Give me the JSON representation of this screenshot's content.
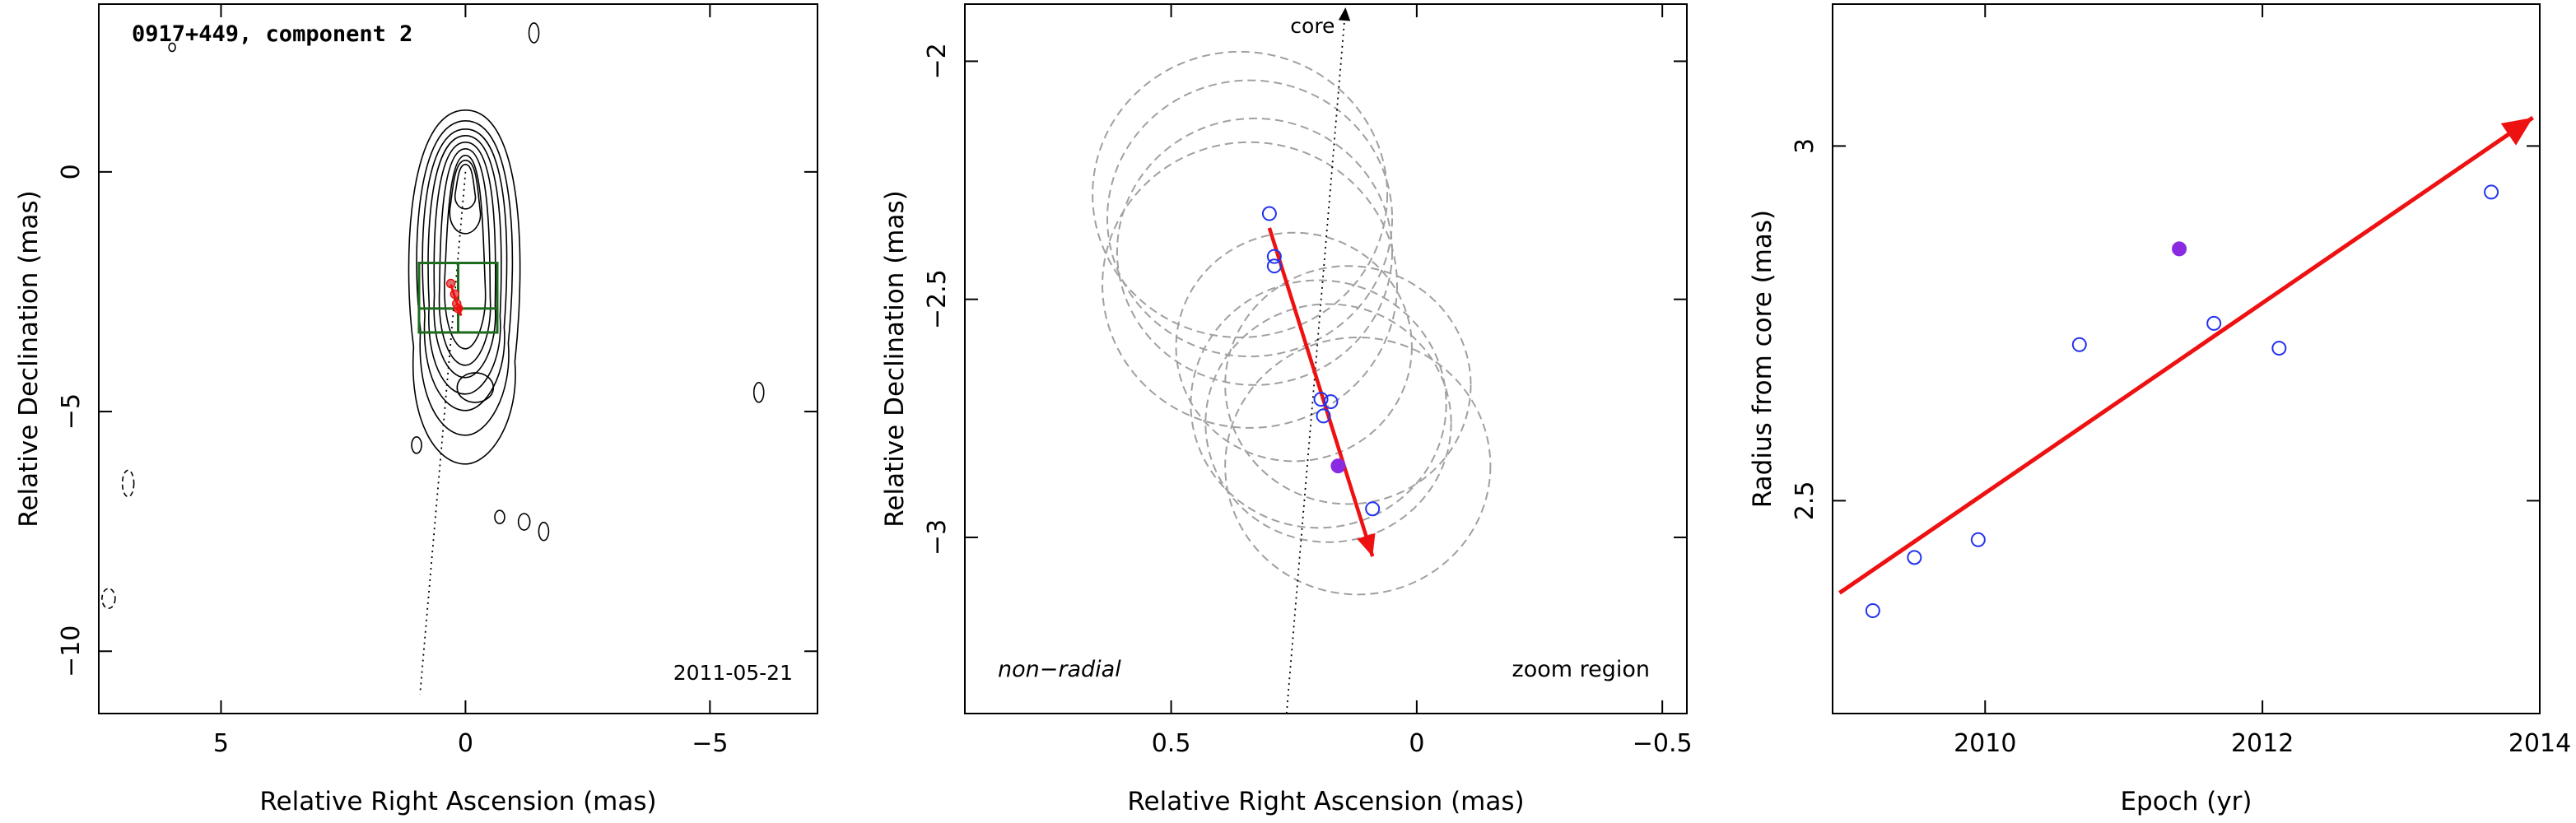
{
  "colors": {
    "axis": "#000000",
    "contour": "#000000",
    "box": "#1e6b1e",
    "arrow": "#ee1111",
    "open_point": "#2233ee",
    "filled_point": "#8a2be2",
    "circle": "#a0a0a0"
  },
  "chart_data": [
    {
      "type": "contour",
      "title": "0917+449, component 2",
      "date": "2011-05-21",
      "xlabel": "Relative Right Ascension (mas)",
      "ylabel": "Relative Declination (mas)",
      "xlim": [
        7.5,
        -7.2
      ],
      "ylim": [
        -11.3,
        3.5
      ],
      "xticks": [
        5,
        0,
        -5
      ],
      "yticks": [
        0,
        -5,
        -10
      ],
      "xtick_labels": [
        "5",
        "0",
        "−5"
      ],
      "ytick_labels": [
        "0",
        "−5",
        "−10"
      ],
      "core_direction_line": [
        [
          0.0,
          0.0
        ],
        [
          0.93,
          -10.9
        ]
      ],
      "zoom_boxes": [
        {
          "x": [
            -0.65,
            0.95
          ],
          "y": [
            -3.35,
            -1.9
          ]
        },
        {
          "x": [
            -0.65,
            0.95
          ],
          "y": [
            -3.35,
            -2.85
          ]
        }
      ],
      "component_points": [
        [
          0.3,
          -2.33
        ],
        [
          0.22,
          -2.55
        ],
        [
          0.18,
          -2.75
        ],
        [
          0.15,
          -2.85
        ]
      ],
      "component_arrow": [
        [
          0.3,
          -2.35
        ],
        [
          0.09,
          -3.0
        ]
      ]
    },
    {
      "type": "scatter",
      "xlabel": "Relative Right Ascension (mas)",
      "ylabel": "Relative Declination (mas)",
      "xlim": [
        0.92,
        -0.55
      ],
      "ylim": [
        -3.37,
        -1.88
      ],
      "xticks": [
        0.5,
        0,
        -0.5
      ],
      "yticks": [
        -2,
        -2.5,
        -3
      ],
      "xtick_labels": [
        "0.5",
        "0",
        "−0.5"
      ],
      "ytick_labels": [
        "−2",
        "−2.5",
        "−3"
      ],
      "annotations": [
        "core",
        "non−radial",
        "zoom region"
      ],
      "core_line": [
        [
          0.265,
          -3.37
        ],
        [
          0.145,
          -1.88
        ]
      ],
      "arrow": [
        [
          0.3,
          -2.35
        ],
        [
          0.09,
          -3.04
        ]
      ],
      "open_points": [
        [
          0.3,
          -2.32
        ],
        [
          0.29,
          -2.41
        ],
        [
          0.29,
          -2.43
        ],
        [
          0.195,
          -2.71
        ],
        [
          0.175,
          -2.715
        ],
        [
          0.19,
          -2.745
        ],
        [
          0.09,
          -2.94
        ]
      ],
      "filled_points": [
        [
          0.16,
          -2.85
        ]
      ],
      "error_circles": [
        {
          "cx": 0.36,
          "cy": -2.28,
          "r": 0.3
        },
        {
          "cx": 0.34,
          "cy": -2.33,
          "r": 0.29
        },
        {
          "cx": 0.33,
          "cy": -2.4,
          "r": 0.28
        },
        {
          "cx": 0.34,
          "cy": -2.47,
          "r": 0.3
        },
        {
          "cx": 0.25,
          "cy": -2.6,
          "r": 0.24
        },
        {
          "cx": 0.2,
          "cy": -2.72,
          "r": 0.26
        },
        {
          "cx": 0.18,
          "cy": -2.76,
          "r": 0.25
        },
        {
          "cx": 0.12,
          "cy": -2.85,
          "r": 0.27
        },
        {
          "cx": 0.14,
          "cy": -2.68,
          "r": 0.25
        }
      ]
    },
    {
      "type": "scatter",
      "xlabel": "Epoch (yr)",
      "ylabel": "Radius from core (mas)",
      "xlim": [
        2008.9,
        2014.0
      ],
      "ylim": [
        2.2,
        3.2
      ],
      "xticks": [
        2010,
        2012,
        2014
      ],
      "yticks": [
        2.5,
        3.0
      ],
      "xtick_labels": [
        "2010",
        "2012",
        "2014"
      ],
      "ytick_labels": [
        "2.5",
        "3"
      ],
      "open_points": [
        [
          2009.19,
          2.345
        ],
        [
          2009.49,
          2.42
        ],
        [
          2009.95,
          2.445
        ],
        [
          2010.68,
          2.72
        ],
        [
          2011.65,
          2.75
        ],
        [
          2012.12,
          2.715
        ],
        [
          2013.65,
          2.935
        ]
      ],
      "filled_points": [
        [
          2011.4,
          2.855
        ]
      ],
      "fit_arrow": [
        [
          2008.95,
          2.37
        ],
        [
          2013.95,
          3.04
        ]
      ]
    }
  ]
}
